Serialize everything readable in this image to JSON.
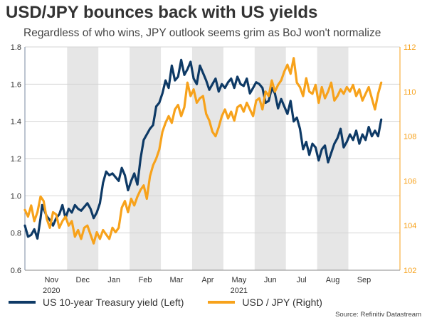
{
  "title": "USD/JPY bounces back with US yields",
  "subtitle": "Regardless of who wins, JPY outlook seems grim as BoJ won't normalize",
  "source": "Source: Refinitiv Datastream",
  "colors": {
    "left": "#0e3a66",
    "right": "#f7a21b",
    "band": "#e6e6e6",
    "right_axis_text": "#f7a21b"
  },
  "chart_data": {
    "type": "line",
    "title": "USD/JPY bounces back with US yields",
    "x_range": [
      0,
      12
    ],
    "months": [
      {
        "label": "Nov",
        "start": 0.35,
        "end": 1.35
      },
      {
        "label": "Dec",
        "start": 1.35,
        "end": 2.35
      },
      {
        "label": "Jan",
        "start": 2.35,
        "end": 3.35
      },
      {
        "label": "Feb",
        "start": 3.35,
        "end": 4.35
      },
      {
        "label": "Mar",
        "start": 4.35,
        "end": 5.35
      },
      {
        "label": "Apr",
        "start": 5.35,
        "end": 6.35
      },
      {
        "label": "May",
        "start": 6.35,
        "end": 7.35
      },
      {
        "label": "Jun",
        "start": 7.35,
        "end": 8.35
      },
      {
        "label": "Jul",
        "start": 8.35,
        "end": 9.35
      },
      {
        "label": "Aug",
        "start": 9.35,
        "end": 10.35
      },
      {
        "label": "Sep",
        "start": 10.35,
        "end": 11.35
      }
    ],
    "shaded_months": [
      "Dec",
      "Feb",
      "Apr",
      "Jun",
      "Aug"
    ],
    "year_labels": [
      {
        "label": "2020",
        "x": 0.85
      },
      {
        "label": "2021",
        "x": 6.85
      }
    ],
    "left_axis": {
      "min": 0.6,
      "max": 1.8,
      "ticks": [
        "0.6",
        "0.8",
        "1.0",
        "1.2",
        "1.4",
        "1.6",
        "1.8"
      ]
    },
    "right_axis": {
      "min": 102,
      "max": 112,
      "ticks": [
        "102",
        "104",
        "106",
        "108",
        "110",
        "112"
      ]
    },
    "series": [
      {
        "name": "US 10-year Treasury yield (Left)",
        "axis": "left",
        "x": [
          0.0,
          0.1,
          0.2,
          0.3,
          0.4,
          0.5,
          0.55,
          0.6,
          0.7,
          0.8,
          0.9,
          1.0,
          1.1,
          1.2,
          1.3,
          1.4,
          1.5,
          1.6,
          1.7,
          1.8,
          1.9,
          2.0,
          2.1,
          2.2,
          2.3,
          2.4,
          2.5,
          2.6,
          2.7,
          2.8,
          2.9,
          3.0,
          3.1,
          3.2,
          3.3,
          3.4,
          3.5,
          3.6,
          3.7,
          3.8,
          3.9,
          4.0,
          4.1,
          4.2,
          4.3,
          4.4,
          4.5,
          4.6,
          4.7,
          4.8,
          4.9,
          5.0,
          5.1,
          5.2,
          5.3,
          5.4,
          5.5,
          5.6,
          5.7,
          5.8,
          5.9,
          6.0,
          6.1,
          6.2,
          6.3,
          6.4,
          6.5,
          6.6,
          6.7,
          6.8,
          6.9,
          7.0,
          7.1,
          7.2,
          7.3,
          7.4,
          7.5,
          7.6,
          7.7,
          7.8,
          7.9,
          8.0,
          8.1,
          8.2,
          8.3,
          8.4,
          8.5,
          8.6,
          8.7,
          8.8,
          8.9,
          9.0,
          9.1,
          9.2,
          9.3,
          9.4,
          9.5,
          9.6,
          9.7,
          9.8,
          9.9,
          10.0,
          10.1,
          10.2,
          10.3,
          10.4,
          10.5,
          10.6,
          10.7,
          10.8,
          10.9,
          11.0,
          11.1,
          11.2,
          11.3,
          11.4
        ],
        "values": [
          0.84,
          0.78,
          0.79,
          0.82,
          0.77,
          0.88,
          0.95,
          0.93,
          0.89,
          0.87,
          0.84,
          0.88,
          0.9,
          0.95,
          0.88,
          0.93,
          0.91,
          0.95,
          0.93,
          0.92,
          0.94,
          0.96,
          0.93,
          0.88,
          0.91,
          0.96,
          1.07,
          1.13,
          1.11,
          1.12,
          1.1,
          1.08,
          1.15,
          1.11,
          1.03,
          1.08,
          1.12,
          1.06,
          1.2,
          1.3,
          1.33,
          1.36,
          1.38,
          1.48,
          1.5,
          1.55,
          1.62,
          1.58,
          1.7,
          1.62,
          1.64,
          1.73,
          1.65,
          1.68,
          1.72,
          1.63,
          1.6,
          1.7,
          1.66,
          1.62,
          1.57,
          1.6,
          1.63,
          1.56,
          1.6,
          1.58,
          1.61,
          1.63,
          1.58,
          1.64,
          1.6,
          1.59,
          1.63,
          1.55,
          1.58,
          1.61,
          1.6,
          1.58,
          1.5,
          1.51,
          1.58,
          1.55,
          1.47,
          1.52,
          1.48,
          1.44,
          1.51,
          1.4,
          1.42,
          1.36,
          1.25,
          1.29,
          1.22,
          1.28,
          1.26,
          1.19,
          1.25,
          1.27,
          1.18,
          1.23,
          1.28,
          1.31,
          1.36,
          1.26,
          1.29,
          1.33,
          1.3,
          1.35,
          1.28,
          1.33,
          1.3,
          1.37,
          1.32,
          1.35,
          1.32,
          1.41
        ],
        "color": "#0e3a66"
      },
      {
        "name": "USD / JPY (Right)",
        "axis": "right",
        "x": [
          0.0,
          0.1,
          0.2,
          0.3,
          0.4,
          0.5,
          0.6,
          0.7,
          0.8,
          0.9,
          1.0,
          1.1,
          1.2,
          1.3,
          1.4,
          1.5,
          1.6,
          1.7,
          1.8,
          1.9,
          2.0,
          2.1,
          2.2,
          2.3,
          2.4,
          2.5,
          2.6,
          2.7,
          2.8,
          2.9,
          3.0,
          3.1,
          3.2,
          3.3,
          3.4,
          3.5,
          3.6,
          3.7,
          3.8,
          3.9,
          4.0,
          4.1,
          4.2,
          4.3,
          4.4,
          4.5,
          4.6,
          4.7,
          4.8,
          4.9,
          5.0,
          5.1,
          5.2,
          5.3,
          5.4,
          5.5,
          5.6,
          5.7,
          5.8,
          5.9,
          6.0,
          6.1,
          6.2,
          6.3,
          6.4,
          6.5,
          6.6,
          6.7,
          6.8,
          6.9,
          7.0,
          7.1,
          7.2,
          7.3,
          7.4,
          7.5,
          7.6,
          7.7,
          7.8,
          7.9,
          8.0,
          8.1,
          8.2,
          8.3,
          8.4,
          8.5,
          8.6,
          8.7,
          8.8,
          8.9,
          9.0,
          9.1,
          9.2,
          9.3,
          9.4,
          9.5,
          9.6,
          9.7,
          9.8,
          9.9,
          10.0,
          10.1,
          10.2,
          10.3,
          10.4,
          10.5,
          10.6,
          10.7,
          10.8,
          10.9,
          11.0,
          11.1,
          11.2,
          11.3,
          11.4
        ],
        "values": [
          104.7,
          104.4,
          104.9,
          104.2,
          104.6,
          105.3,
          105.1,
          104.3,
          103.9,
          104.6,
          104.5,
          103.9,
          104.2,
          104.4,
          104.0,
          104.2,
          103.5,
          103.8,
          103.4,
          103.9,
          104.0,
          103.6,
          103.2,
          103.7,
          103.4,
          103.8,
          103.6,
          103.4,
          103.9,
          103.7,
          103.9,
          104.8,
          105.1,
          104.6,
          105.2,
          104.9,
          105.3,
          105.6,
          105.8,
          105.2,
          106.2,
          106.7,
          107.0,
          107.4,
          108.2,
          108.6,
          108.9,
          108.6,
          109.2,
          109.4,
          108.9,
          109.3,
          110.4,
          109.8,
          110.1,
          109.5,
          109.7,
          109.8,
          109.0,
          108.7,
          108.2,
          108.0,
          108.4,
          108.9,
          109.2,
          108.8,
          109.1,
          108.7,
          109.3,
          109.4,
          109.1,
          109.5,
          109.2,
          108.9,
          109.6,
          109.7,
          109.2,
          110.0,
          109.8,
          110.5,
          110.0,
          110.3,
          110.5,
          110.9,
          111.2,
          110.8,
          111.5,
          110.4,
          110.2,
          109.8,
          110.6,
          110.0,
          109.9,
          110.3,
          109.5,
          110.2,
          109.7,
          110.0,
          110.4,
          109.6,
          109.8,
          110.1,
          109.9,
          110.2,
          110.0,
          110.3,
          109.8,
          110.1,
          109.6,
          109.9,
          110.2,
          109.7,
          109.2,
          109.9,
          110.4
        ]
      }
    ],
    "legend": "bottom"
  }
}
